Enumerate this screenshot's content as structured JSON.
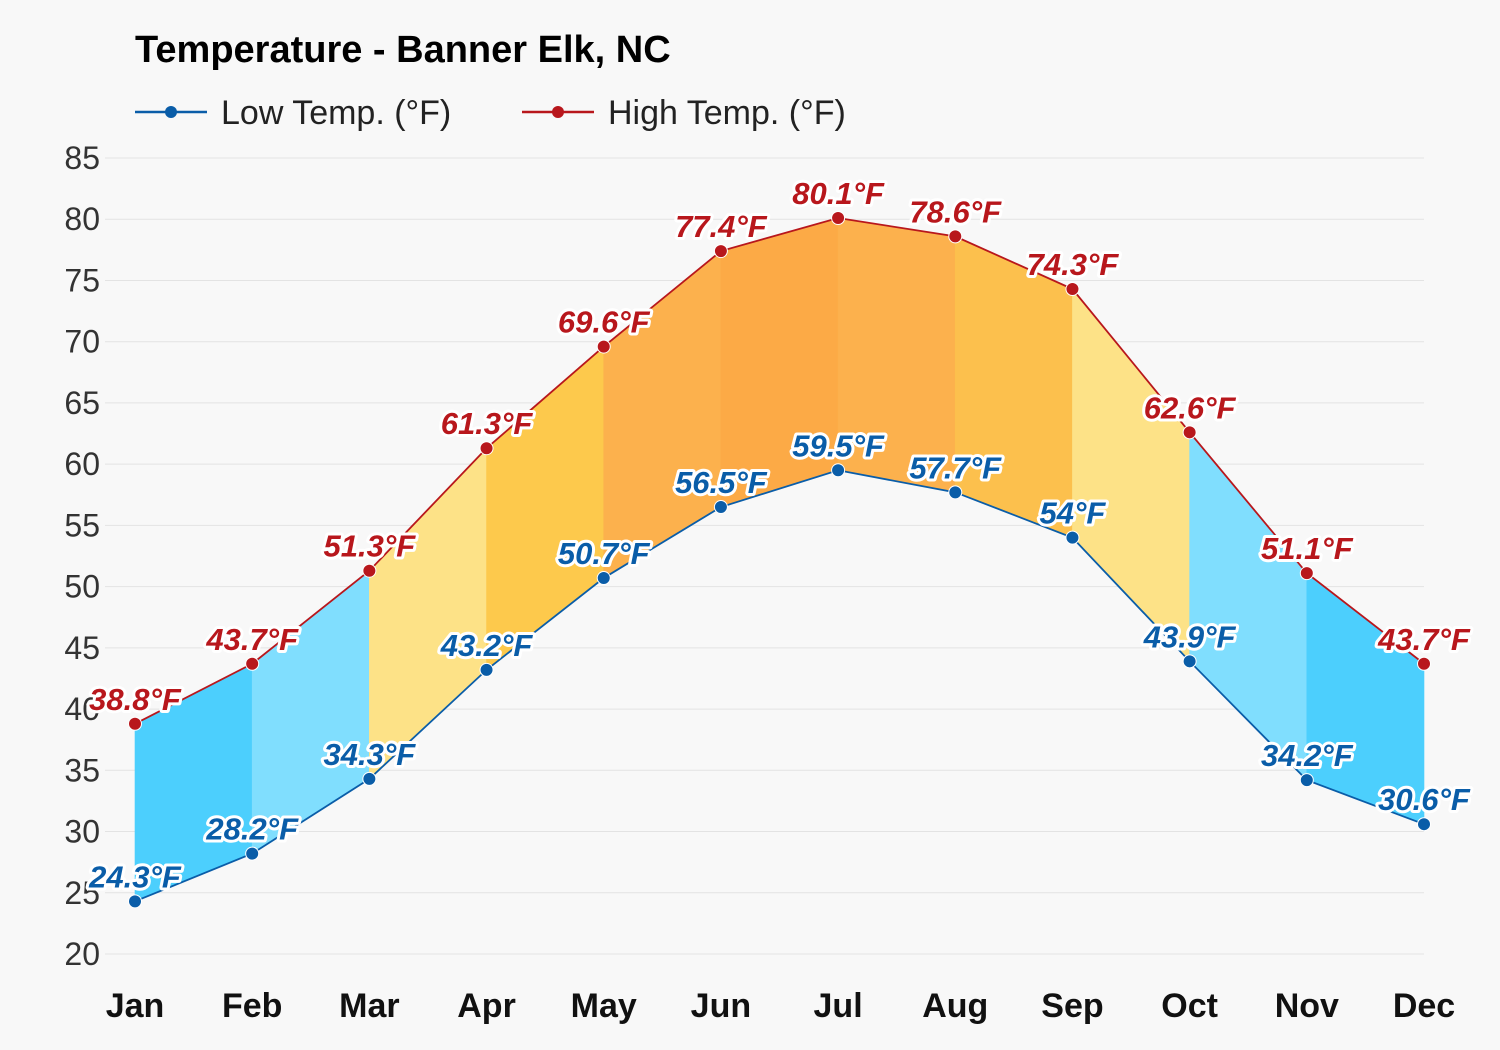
{
  "chart_data": {
    "type": "area",
    "title": "Temperature - Banner Elk, NC",
    "categories": [
      "Jan",
      "Feb",
      "Mar",
      "Apr",
      "May",
      "Jun",
      "Jul",
      "Aug",
      "Sep",
      "Oct",
      "Nov",
      "Dec"
    ],
    "series": [
      {
        "name": "Low Temp. (°F)",
        "color": "#0a5da8",
        "values": [
          24.3,
          28.2,
          34.3,
          43.2,
          50.7,
          56.5,
          59.5,
          57.7,
          54.0,
          43.9,
          34.2,
          30.6
        ],
        "labels": [
          "24.3°F",
          "28.2°F",
          "34.3°F",
          "43.2°F",
          "50.7°F",
          "56.5°F",
          "59.5°F",
          "57.7°F",
          "54°F",
          "43.9°F",
          "34.2°F",
          "30.6°F"
        ]
      },
      {
        "name": "High Temp. (°F)",
        "color": "#b8171c",
        "values": [
          38.8,
          43.7,
          51.3,
          61.3,
          69.6,
          77.4,
          80.1,
          78.6,
          74.3,
          62.6,
          51.1,
          43.7
        ],
        "labels": [
          "38.8°F",
          "43.7°F",
          "51.3°F",
          "61.3°F",
          "69.6°F",
          "77.4°F",
          "80.1°F",
          "78.6°F",
          "74.3°F",
          "62.6°F",
          "51.1°F",
          "43.7°F"
        ]
      }
    ],
    "band_colors": [
      "#4ccffd",
      "#80defe",
      "#fde287",
      "#fdc94c",
      "#fcb14d",
      "#fcaa46",
      "#fcb14d",
      "#fcc04d",
      "#fde287",
      "#80defe",
      "#4ccffd",
      "#4ccffd"
    ],
    "ylim": [
      20,
      85
    ],
    "yticks": [
      20,
      25,
      30,
      35,
      40,
      45,
      50,
      55,
      60,
      65,
      70,
      75,
      80,
      85
    ],
    "grid": true,
    "legend_position": "top-left"
  }
}
